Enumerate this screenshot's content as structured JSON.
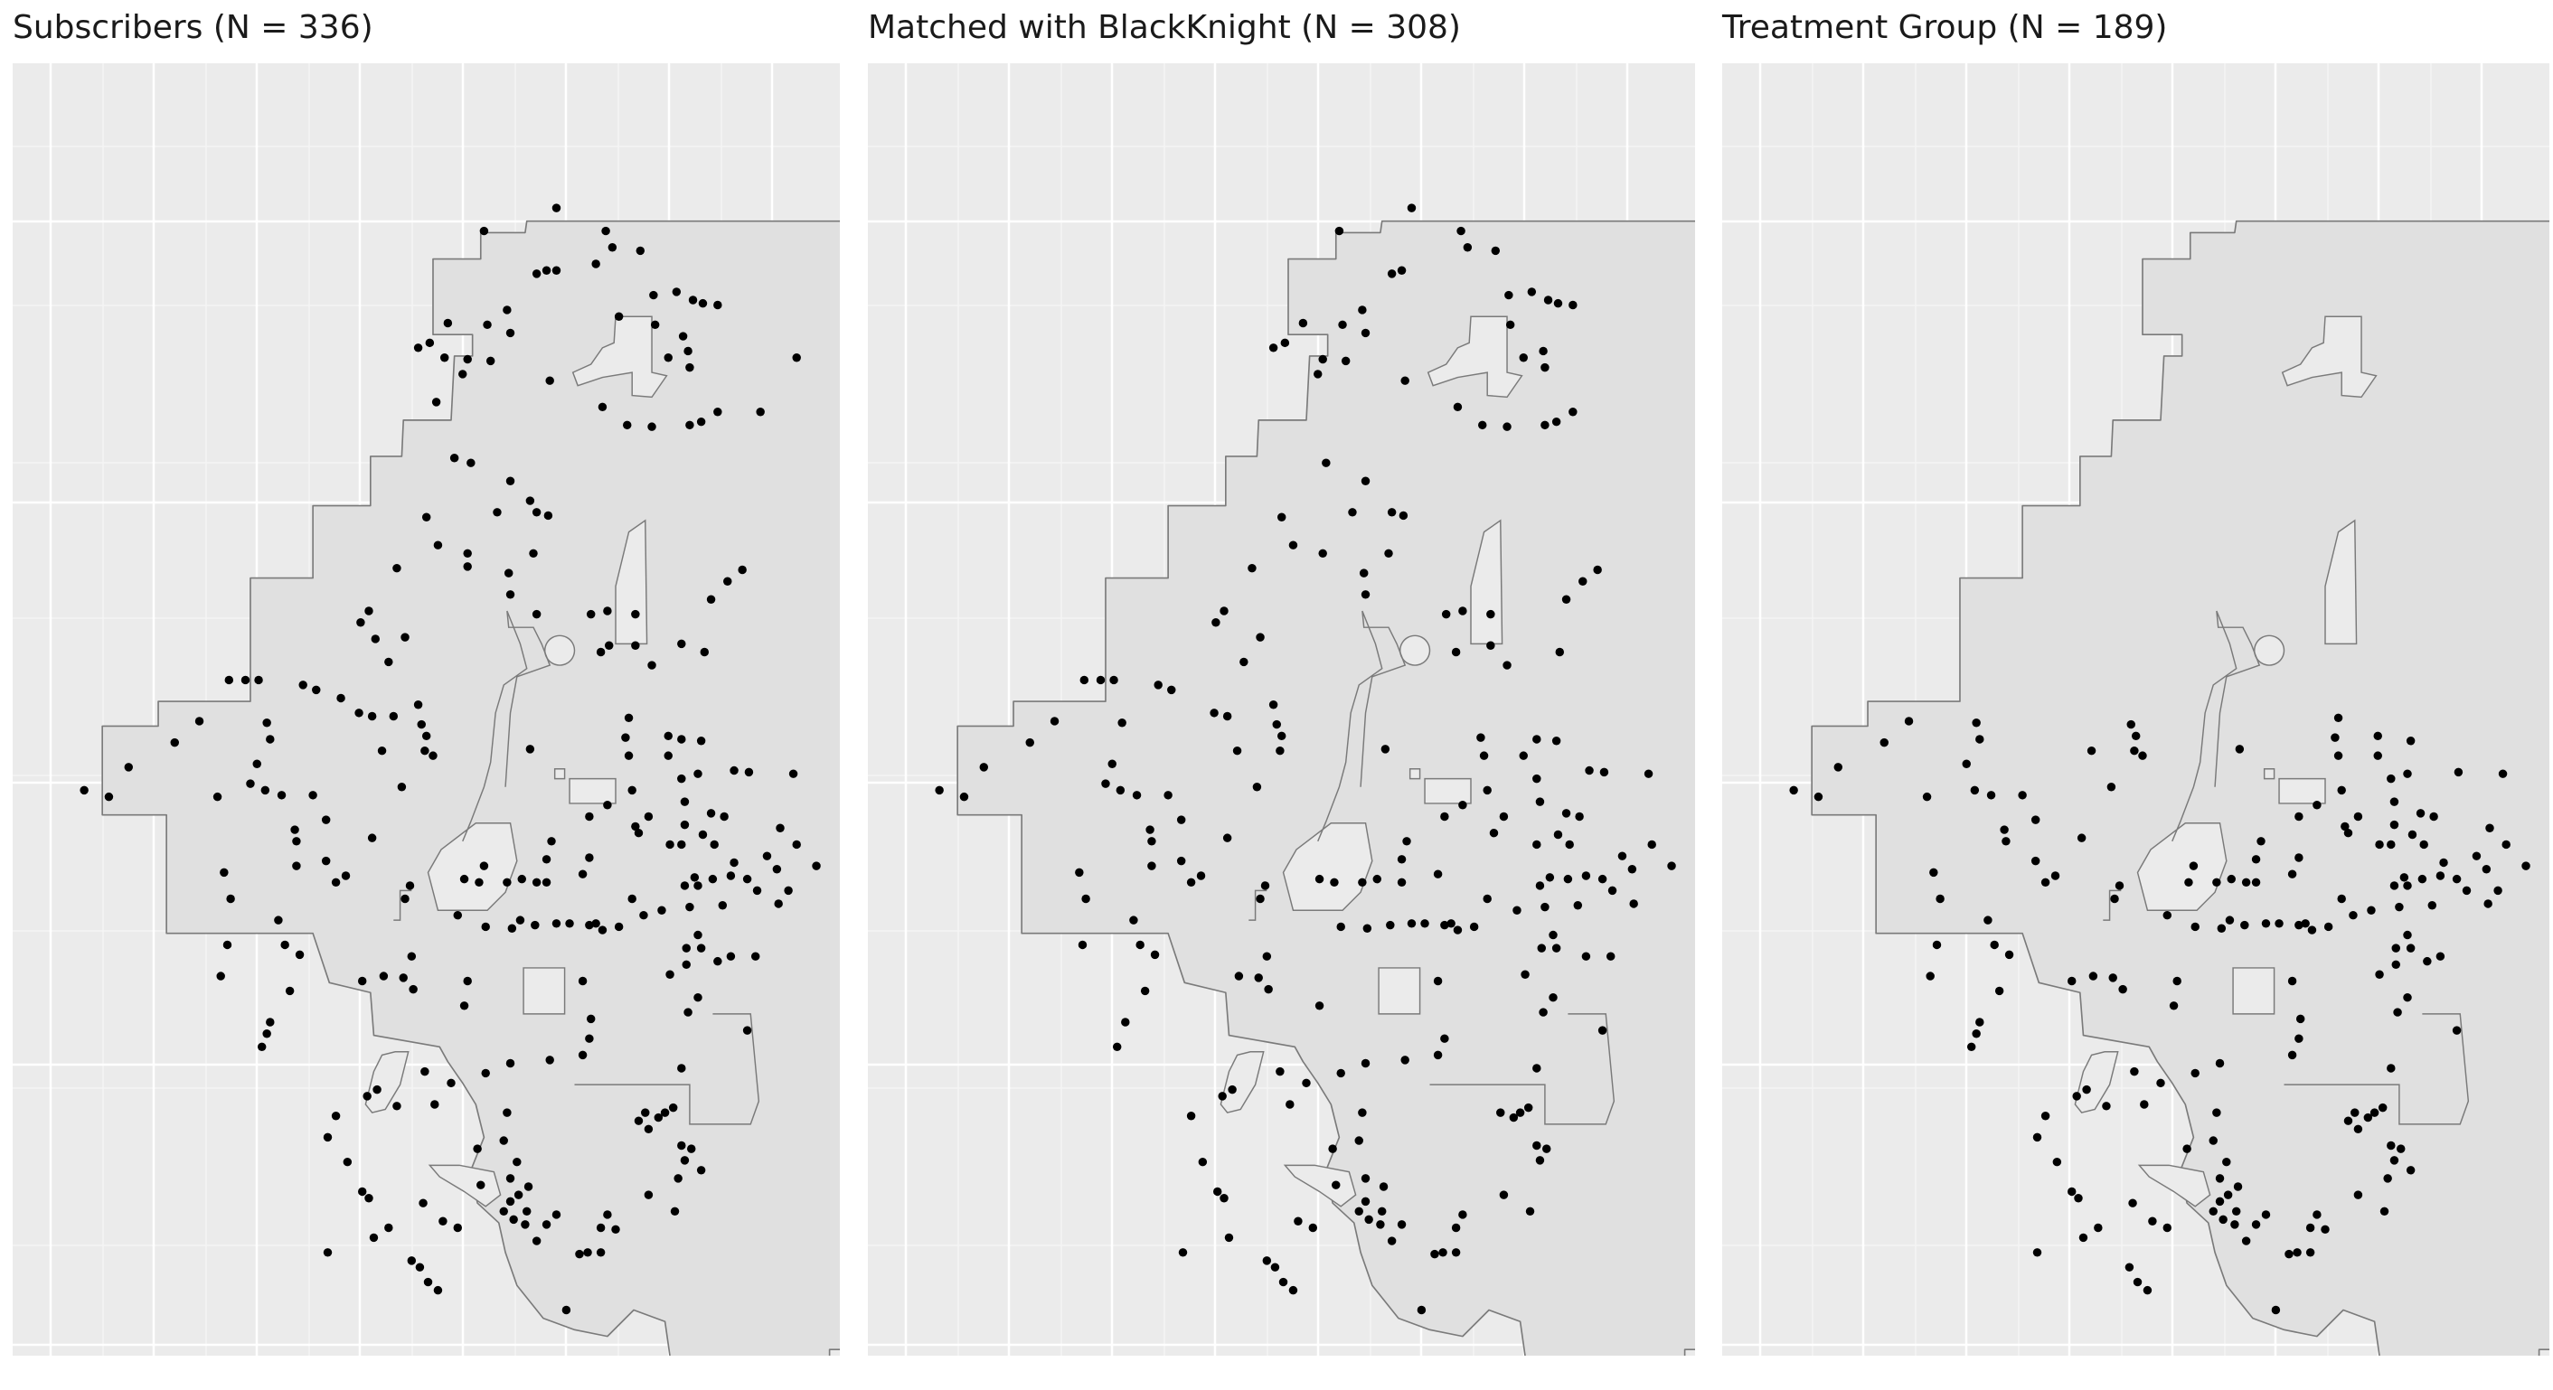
{
  "panels": [
    {
      "title": "Subscribers (N = 336)",
      "point_density": 1.0,
      "southern_only": false
    },
    {
      "title": "Matched with BlackKnight (N = 308)",
      "point_density": 0.8,
      "southern_only": false
    },
    {
      "title": "Treatment Group (N = 189)",
      "point_density": 0.95,
      "southern_only": true
    }
  ],
  "colors": {
    "panel_bg": "#ebebeb",
    "grid": "#ffffff",
    "region_fill": "#e0e0e0",
    "region_stroke": "#7a7a7a",
    "point": "#000000",
    "hole_fill": "#ebebeb"
  }
}
